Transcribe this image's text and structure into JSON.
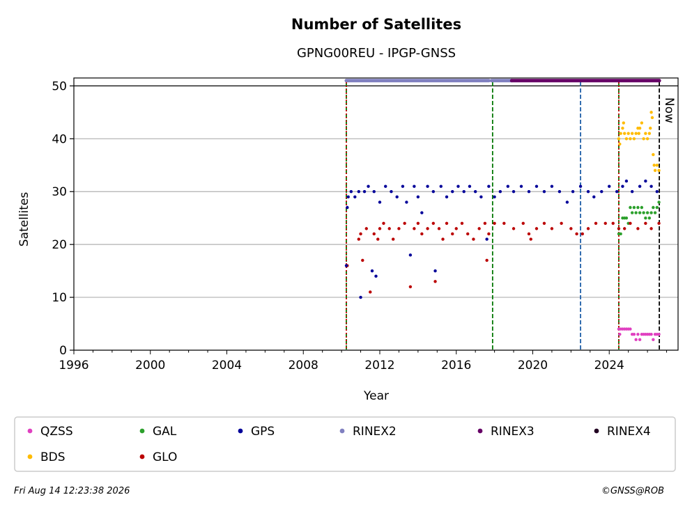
{
  "chart_data": {
    "type": "scatter",
    "title": "Number of Satellites",
    "subtitle": "GPNG00REU - IPGP-GNSS",
    "xlabel": "Year",
    "ylabel": "Satellites",
    "xlim": [
      1996,
      2027.6
    ],
    "ylim": [
      0,
      51.5
    ],
    "xticks": [
      1996,
      2000,
      2004,
      2008,
      2012,
      2016,
      2020,
      2024
    ],
    "yticks": [
      0,
      10,
      20,
      30,
      40,
      50
    ],
    "grid": "horizontal",
    "now_label": "Now",
    "now_year": 2026.62,
    "vlines": [
      {
        "x": 2010.25,
        "color": "#007700",
        "style": "dashed"
      },
      {
        "x": 2010.25,
        "color": "#cc0000",
        "style": "dotted"
      },
      {
        "x": 2017.9,
        "color": "#007700",
        "style": "dashed"
      },
      {
        "x": 2022.5,
        "color": "#1f5fa8",
        "style": "dashed"
      },
      {
        "x": 2024.5,
        "color": "#007700",
        "style": "dashed"
      },
      {
        "x": 2024.5,
        "color": "#cc0000",
        "style": "dotted"
      },
      {
        "x": 2026.62,
        "color": "#000000",
        "style": "dashed"
      }
    ],
    "rinex_bars": [
      {
        "name": "RINEX2",
        "color": "#8080c0",
        "ranges": [
          [
            2010.25,
            2017.7
          ],
          [
            2017.85,
            2018.9
          ]
        ]
      },
      {
        "name": "RINEX3",
        "color": "#660066",
        "ranges": [
          [
            2018.9,
            2026.62
          ]
        ]
      }
    ],
    "series": [
      {
        "name": "QZSS",
        "color": "#e040c0",
        "points": [
          [
            2024.5,
            4
          ],
          [
            2024.55,
            3
          ],
          [
            2024.6,
            4
          ],
          [
            2024.7,
            4
          ],
          [
            2024.8,
            4
          ],
          [
            2024.9,
            4
          ],
          [
            2025.0,
            4
          ],
          [
            2025.1,
            4
          ],
          [
            2025.2,
            3
          ],
          [
            2025.3,
            3
          ],
          [
            2025.4,
            2
          ],
          [
            2025.5,
            3
          ],
          [
            2025.6,
            2
          ],
          [
            2025.7,
            3
          ],
          [
            2025.8,
            3
          ],
          [
            2025.9,
            3
          ],
          [
            2026.0,
            3
          ],
          [
            2026.1,
            3
          ],
          [
            2026.2,
            3
          ],
          [
            2026.3,
            2
          ],
          [
            2026.4,
            3
          ],
          [
            2026.5,
            3
          ],
          [
            2026.6,
            3
          ]
        ]
      },
      {
        "name": "BDS",
        "color": "#ffbb00",
        "points": [
          [
            2024.5,
            40
          ],
          [
            2024.55,
            39
          ],
          [
            2024.6,
            41
          ],
          [
            2024.7,
            42
          ],
          [
            2024.75,
            43
          ],
          [
            2024.8,
            41
          ],
          [
            2024.9,
            40
          ],
          [
            2025.0,
            41
          ],
          [
            2025.1,
            40
          ],
          [
            2025.2,
            41
          ],
          [
            2025.3,
            40
          ],
          [
            2025.4,
            41
          ],
          [
            2025.5,
            42
          ],
          [
            2025.55,
            41
          ],
          [
            2025.6,
            42
          ],
          [
            2025.7,
            43
          ],
          [
            2025.8,
            40
          ],
          [
            2025.9,
            41
          ],
          [
            2026.0,
            40
          ],
          [
            2026.1,
            41
          ],
          [
            2026.15,
            42
          ],
          [
            2026.2,
            45
          ],
          [
            2026.25,
            44
          ],
          [
            2026.3,
            37
          ],
          [
            2026.35,
            35
          ],
          [
            2026.4,
            34
          ],
          [
            2026.5,
            35
          ],
          [
            2026.6,
            34
          ]
        ]
      },
      {
        "name": "GAL",
        "color": "#2ca02c",
        "points": [
          [
            2024.5,
            22
          ],
          [
            2024.6,
            22
          ],
          [
            2024.7,
            25
          ],
          [
            2024.8,
            25
          ],
          [
            2024.9,
            25
          ],
          [
            2025.0,
            24
          ],
          [
            2025.1,
            27
          ],
          [
            2025.2,
            26
          ],
          [
            2025.3,
            27
          ],
          [
            2025.4,
            26
          ],
          [
            2025.5,
            27
          ],
          [
            2025.6,
            26
          ],
          [
            2025.7,
            27
          ],
          [
            2025.8,
            26
          ],
          [
            2025.9,
            25
          ],
          [
            2026.0,
            26
          ],
          [
            2026.1,
            25
          ],
          [
            2026.2,
            26
          ],
          [
            2026.3,
            27
          ],
          [
            2026.4,
            26
          ],
          [
            2026.5,
            27
          ],
          [
            2026.6,
            28
          ]
        ]
      },
      {
        "name": "GLO",
        "color": "#bb0000",
        "points": [
          [
            2010.3,
            16
          ],
          [
            2010.9,
            21
          ],
          [
            2011.0,
            22
          ],
          [
            2011.1,
            17
          ],
          [
            2011.3,
            23
          ],
          [
            2011.5,
            11
          ],
          [
            2011.7,
            22
          ],
          [
            2011.9,
            21
          ],
          [
            2012.0,
            23
          ],
          [
            2012.2,
            24
          ],
          [
            2012.5,
            23
          ],
          [
            2012.7,
            21
          ],
          [
            2013.0,
            23
          ],
          [
            2013.3,
            24
          ],
          [
            2013.6,
            12
          ],
          [
            2013.8,
            23
          ],
          [
            2014.0,
            24
          ],
          [
            2014.2,
            22
          ],
          [
            2014.5,
            23
          ],
          [
            2014.8,
            24
          ],
          [
            2014.9,
            13
          ],
          [
            2015.1,
            23
          ],
          [
            2015.3,
            21
          ],
          [
            2015.5,
            24
          ],
          [
            2015.8,
            22
          ],
          [
            2016.0,
            23
          ],
          [
            2016.3,
            24
          ],
          [
            2016.6,
            22
          ],
          [
            2016.9,
            21
          ],
          [
            2017.2,
            23
          ],
          [
            2017.5,
            24
          ],
          [
            2017.6,
            17
          ],
          [
            2017.7,
            22
          ],
          [
            2018.0,
            24
          ],
          [
            2018.5,
            24
          ],
          [
            2019.0,
            23
          ],
          [
            2019.5,
            24
          ],
          [
            2019.8,
            22
          ],
          [
            2019.9,
            21
          ],
          [
            2020.2,
            23
          ],
          [
            2020.6,
            24
          ],
          [
            2021.0,
            23
          ],
          [
            2021.5,
            24
          ],
          [
            2022.0,
            23
          ],
          [
            2022.3,
            22
          ],
          [
            2022.6,
            22
          ],
          [
            2022.9,
            23
          ],
          [
            2023.3,
            24
          ],
          [
            2023.8,
            24
          ],
          [
            2024.2,
            24
          ],
          [
            2024.5,
            23
          ],
          [
            2024.8,
            23
          ],
          [
            2025.1,
            24
          ],
          [
            2025.5,
            23
          ],
          [
            2025.9,
            24
          ],
          [
            2026.2,
            23
          ],
          [
            2026.6,
            24
          ]
        ]
      },
      {
        "name": "GPS",
        "color": "#000099",
        "points": [
          [
            2010.25,
            16
          ],
          [
            2010.3,
            27
          ],
          [
            2010.35,
            29
          ],
          [
            2010.5,
            30
          ],
          [
            2010.7,
            29
          ],
          [
            2010.9,
            30
          ],
          [
            2011.0,
            10
          ],
          [
            2011.2,
            30
          ],
          [
            2011.4,
            31
          ],
          [
            2011.6,
            15
          ],
          [
            2011.7,
            30
          ],
          [
            2011.8,
            14
          ],
          [
            2012.0,
            28
          ],
          [
            2012.3,
            31
          ],
          [
            2012.6,
            30
          ],
          [
            2012.9,
            29
          ],
          [
            2013.2,
            31
          ],
          [
            2013.4,
            28
          ],
          [
            2013.6,
            18
          ],
          [
            2013.8,
            31
          ],
          [
            2014.0,
            29
          ],
          [
            2014.2,
            26
          ],
          [
            2014.5,
            31
          ],
          [
            2014.8,
            30
          ],
          [
            2014.9,
            15
          ],
          [
            2015.2,
            31
          ],
          [
            2015.5,
            29
          ],
          [
            2015.8,
            30
          ],
          [
            2016.1,
            31
          ],
          [
            2016.4,
            30
          ],
          [
            2016.7,
            31
          ],
          [
            2017.0,
            30
          ],
          [
            2017.3,
            29
          ],
          [
            2017.6,
            21
          ],
          [
            2017.7,
            31
          ],
          [
            2018.0,
            29
          ],
          [
            2018.3,
            30
          ],
          [
            2018.7,
            31
          ],
          [
            2019.0,
            30
          ],
          [
            2019.4,
            31
          ],
          [
            2019.8,
            30
          ],
          [
            2020.2,
            31
          ],
          [
            2020.6,
            30
          ],
          [
            2021.0,
            31
          ],
          [
            2021.4,
            30
          ],
          [
            2021.8,
            28
          ],
          [
            2022.1,
            30
          ],
          [
            2022.5,
            31
          ],
          [
            2022.9,
            30
          ],
          [
            2023.2,
            29
          ],
          [
            2023.6,
            30
          ],
          [
            2024.0,
            31
          ],
          [
            2024.4,
            30
          ],
          [
            2024.7,
            31
          ],
          [
            2024.9,
            32
          ],
          [
            2025.2,
            30
          ],
          [
            2025.6,
            31
          ],
          [
            2025.9,
            32
          ],
          [
            2026.2,
            31
          ],
          [
            2026.5,
            30
          ]
        ]
      }
    ],
    "legend": [
      {
        "name": "QZSS",
        "color": "#e040c0"
      },
      {
        "name": "GAL",
        "color": "#2ca02c"
      },
      {
        "name": "GPS",
        "color": "#000099"
      },
      {
        "name": "RINEX2",
        "color": "#8080c0"
      },
      {
        "name": "RINEX3",
        "color": "#660066"
      },
      {
        "name": "RINEX4",
        "color": "#220022"
      },
      {
        "name": "BDS",
        "color": "#ffbb00"
      },
      {
        "name": "GLO",
        "color": "#bb0000"
      }
    ]
  },
  "footer": {
    "timestamp": "Fri Aug 14 12:23:38 2026",
    "credit": "©GNSS@ROB"
  }
}
